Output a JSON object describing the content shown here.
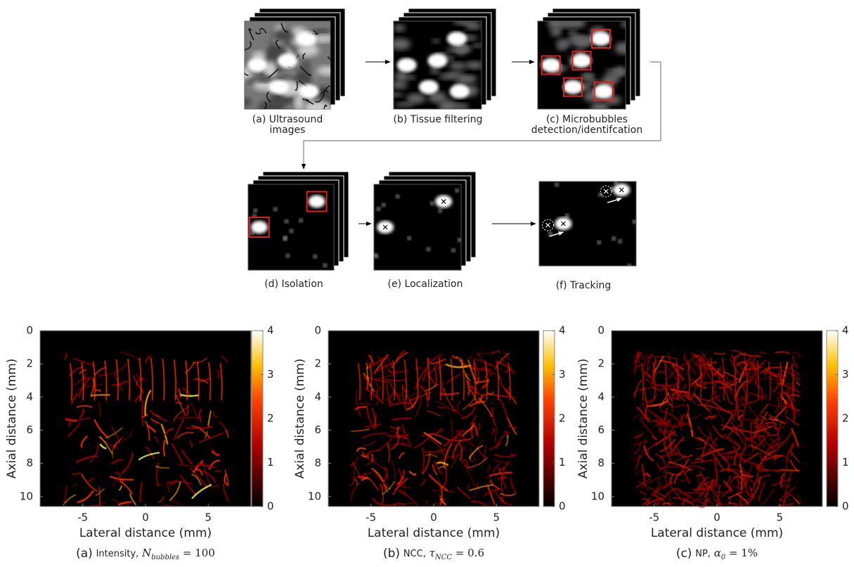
{
  "pipeline": {
    "steps": [
      {
        "lines": [
          "(a) Ultrasound",
          "images"
        ]
      },
      {
        "lines": [
          "(b) Tissue filtering"
        ]
      },
      {
        "lines": [
          "(c) Microbubbles",
          "detection/identifcation"
        ]
      },
      {
        "lines": [
          "(d) Isolation"
        ]
      },
      {
        "lines": [
          "(e) Localization"
        ]
      },
      {
        "lines": [
          "(f) Tracking"
        ]
      }
    ]
  },
  "panels": [
    {
      "y_label": "Axial distance (mm)",
      "x_label": "Lateral distance (mm)",
      "xlim": [
        -8.4,
        8.4
      ],
      "ylim": [
        0,
        10.6
      ],
      "xticks": [
        -5,
        0,
        5
      ],
      "yticks": [
        0,
        2,
        4,
        6,
        8,
        10
      ],
      "colorbar_lim": [
        0,
        4
      ],
      "colorbar_ticks": [
        0,
        1,
        2,
        3,
        4
      ],
      "caption": {
        "prefix": "(a)",
        "method": "Intensity,",
        "symbol": "N",
        "sub": "bubbles",
        "rel": "= 100"
      }
    },
    {
      "y_label": "Axial distance (mm)",
      "x_label": "Lateral distance (mm)",
      "xlim": [
        -8.4,
        8.4
      ],
      "ylim": [
        0,
        10.6
      ],
      "xticks": [
        -5,
        0,
        5
      ],
      "yticks": [
        0,
        2,
        4,
        6,
        8,
        10
      ],
      "colorbar_lim": [
        0,
        4
      ],
      "colorbar_ticks": [
        0,
        1,
        2,
        3,
        4
      ],
      "caption": {
        "prefix": "(b)",
        "method": "NCC,",
        "symbol": "τ",
        "sub": "NCC",
        "rel": "= 0.6"
      }
    },
    {
      "y_label": "Axial distance (mm)",
      "x_label": "Lateral distance (mm)",
      "xlim": [
        -8.4,
        8.4
      ],
      "ylim": [
        0,
        10.6
      ],
      "xticks": [
        -5,
        0,
        5
      ],
      "yticks": [
        0,
        2,
        4,
        6,
        8,
        10
      ],
      "colorbar_lim": [
        0,
        4
      ],
      "colorbar_ticks": [
        0,
        1,
        2,
        3,
        4
      ],
      "caption": {
        "prefix": "(c)",
        "method": "NP,",
        "symbol": "α",
        "sub": "0",
        "rel": "= 1%"
      }
    }
  ]
}
